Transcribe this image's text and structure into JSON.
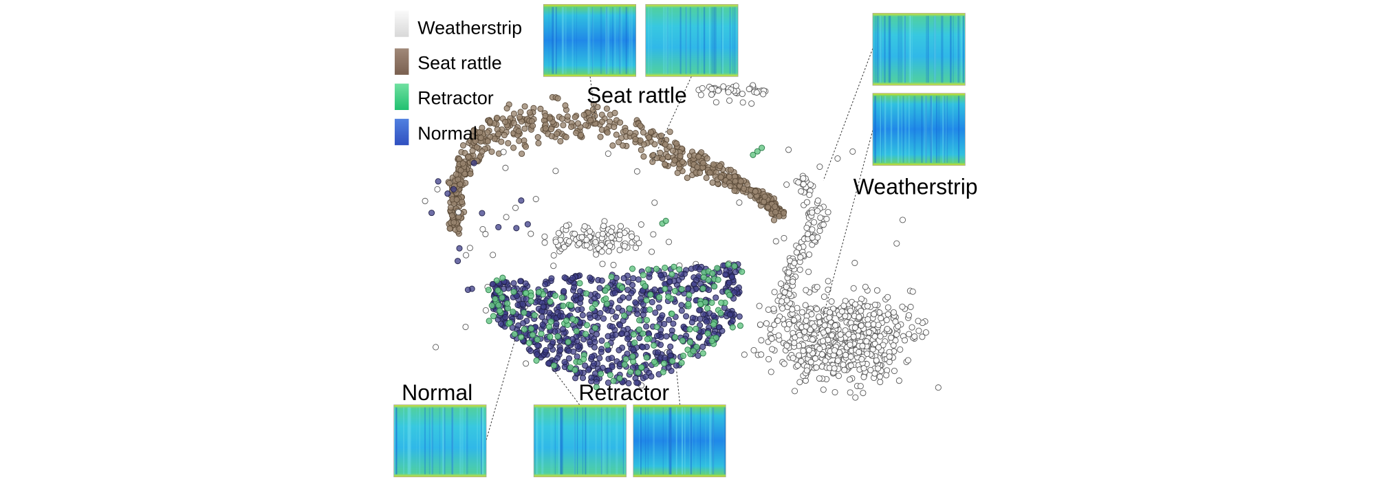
{
  "legend": [
    {
      "label": "Weatherstrip"
    },
    {
      "label": "Seat rattle"
    },
    {
      "label": "Retractor"
    },
    {
      "label": "Normal"
    }
  ],
  "annotations": [
    {
      "label": "Seat rattle"
    },
    {
      "label": "Weatherstrip"
    },
    {
      "label": "Normal"
    },
    {
      "label": "Retractor"
    }
  ]
}
